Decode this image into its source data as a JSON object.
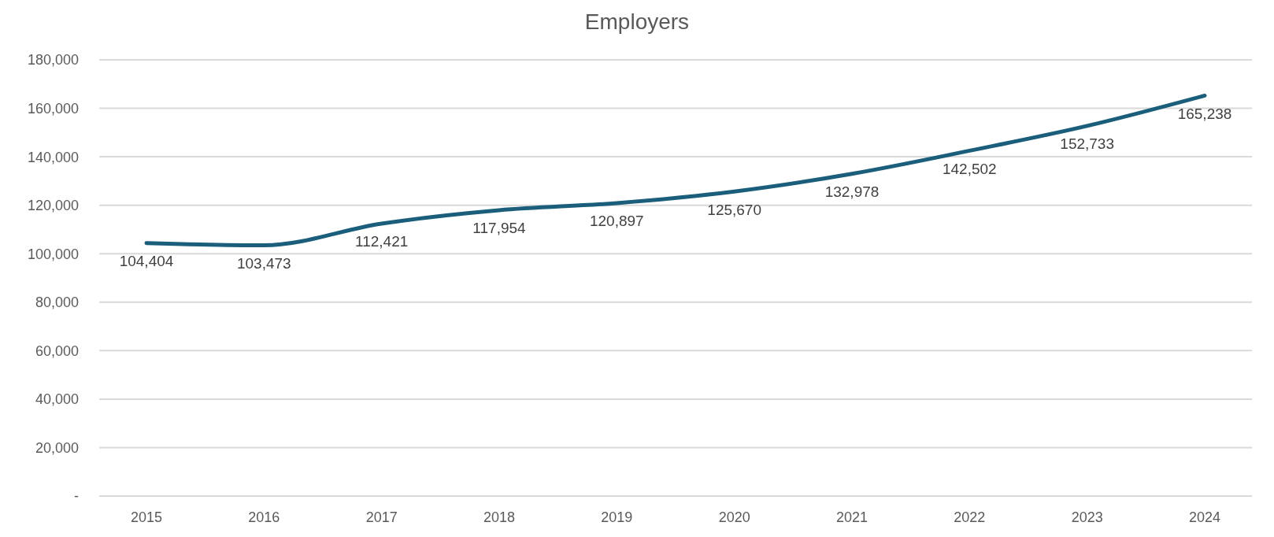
{
  "chart_data": {
    "type": "line",
    "title": "Employers",
    "categories": [
      "2015",
      "2016",
      "2017",
      "2018",
      "2019",
      "2020",
      "2021",
      "2022",
      "2023",
      "2024"
    ],
    "series": [
      {
        "color": "#1b5e7b",
        "values": [
          104404,
          103473,
          112421,
          117954,
          120897,
          125670,
          132978,
          142502,
          152733,
          165238
        ],
        "value_labels": [
          "104,404",
          "103,473",
          "112,421",
          "117,954",
          "120,897",
          "125,670",
          "132,978",
          "142,502",
          "152,733",
          "165,238"
        ]
      }
    ],
    "ylim": [
      0,
      180000
    ],
    "yticks": [
      {
        "value": 0,
        "label": "-"
      },
      {
        "value": 20000,
        "label": "20,000"
      },
      {
        "value": 40000,
        "label": "40,000"
      },
      {
        "value": 60000,
        "label": "60,000"
      },
      {
        "value": 80000,
        "label": "80,000"
      },
      {
        "value": 100000,
        "label": "100,000"
      },
      {
        "value": 120000,
        "label": "120,000"
      },
      {
        "value": 140000,
        "label": "140,000"
      },
      {
        "value": 160000,
        "label": "160,000"
      },
      {
        "value": 180000,
        "label": "180,000"
      }
    ],
    "grid": "y",
    "legend": false,
    "marker": "none"
  }
}
